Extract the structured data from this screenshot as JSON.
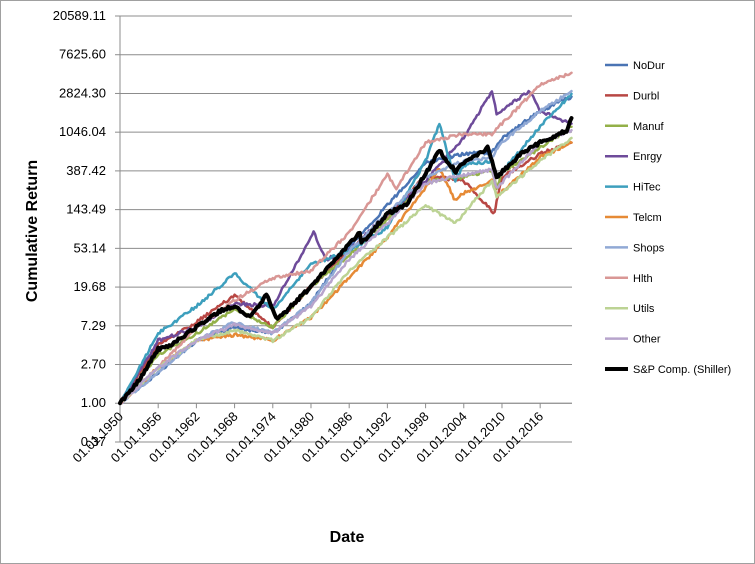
{
  "chart_data": {
    "type": "line",
    "title": "",
    "xlabel": "Date",
    "ylabel": "Cumulative Return",
    "y_scale": "log",
    "ylim": [
      0.37,
      20589.11
    ],
    "y_ticks": [
      "0.37",
      "1.00",
      "2.70",
      "7.29",
      "19.68",
      "53.14",
      "143.49",
      "387.42",
      "1046.04",
      "2824.30",
      "7625.60",
      "20589.11"
    ],
    "y_tick_values": [
      0.37,
      1.0,
      2.7,
      7.29,
      19.68,
      53.14,
      143.49,
      387.42,
      1046.04,
      2824.3,
      7625.6,
      20589.11
    ],
    "x_ticks": [
      "01.01.1950",
      "01.01.1956",
      "01.01.1962",
      "01.01.1968",
      "01.01.1974",
      "01.01.1980",
      "01.01.1986",
      "01.01.1992",
      "01.01.1998",
      "01.01.2004",
      "01.01.2010",
      "01.01.2016"
    ],
    "xlim": [
      "1950-01-01",
      "2020-12-31"
    ],
    "grid": "horizontal",
    "legend_position": "right",
    "series": [
      {
        "name": "NoDur",
        "color": "#4a74b4",
        "width": 2.5,
        "x": [
          "1950-01-01",
          "1956-01-01",
          "1962-01-01",
          "1968-01-01",
          "1974-01-01",
          "1980-01-01",
          "1986-01-01",
          "1992-01-01",
          "1998-01-01",
          "2004-01-01",
          "2008-06-01",
          "2010-01-01",
          "2016-01-01",
          "2020-12-01"
        ],
        "y": [
          1,
          2.2,
          5,
          7,
          6,
          13,
          55,
          160,
          480,
          600,
          620,
          900,
          1800,
          2600
        ]
      },
      {
        "name": "Durbl",
        "color": "#b84744",
        "width": 2.5,
        "x": [
          "1950-01-01",
          "1956-01-01",
          "1962-01-01",
          "1968-01-01",
          "1974-01-01",
          "1980-01-01",
          "1986-01-01",
          "1992-01-01",
          "1998-01-01",
          "2004-01-01",
          "2008-11-01",
          "2009-03-01",
          "2010-01-01",
          "2016-01-01",
          "2020-12-01"
        ],
        "y": [
          1,
          4.5,
          8,
          16,
          7,
          20,
          50,
          120,
          340,
          300,
          130,
          180,
          330,
          600,
          800
        ]
      },
      {
        "name": "Manuf",
        "color": "#93b048",
        "width": 2.5,
        "x": [
          "1950-01-01",
          "1956-01-01",
          "1962-01-01",
          "1968-01-01",
          "1974-01-01",
          "1980-01-01",
          "1986-01-01",
          "1992-01-01",
          "1998-01-01",
          "2004-01-01",
          "2008-06-01",
          "2009-03-01",
          "2010-01-01",
          "2016-01-01",
          "2020-12-01"
        ],
        "y": [
          1,
          3.5,
          6,
          11,
          7,
          20,
          45,
          110,
          300,
          330,
          400,
          250,
          370,
          700,
          1200
        ]
      },
      {
        "name": "Enrgy",
        "color": "#6e4b9a",
        "width": 2.5,
        "x": [
          "1950-01-01",
          "1956-01-01",
          "1962-01-01",
          "1968-01-01",
          "1974-01-01",
          "1980-06-01",
          "1982-06-01",
          "1986-01-01",
          "1992-01-01",
          "1998-01-01",
          "2004-01-01",
          "2008-06-01",
          "2009-03-01",
          "2014-06-01",
          "2016-01-01",
          "2020-12-01"
        ],
        "y": [
          1,
          5,
          7,
          13,
          12,
          80,
          40,
          50,
          130,
          300,
          900,
          3000,
          1700,
          3000,
          1800,
          1300
        ]
      },
      {
        "name": "HiTec",
        "color": "#3d9fbd",
        "width": 2.5,
        "x": [
          "1950-01-01",
          "1956-01-01",
          "1962-01-01",
          "1968-01-01",
          "1974-01-01",
          "1980-01-01",
          "1986-01-01",
          "1992-01-01",
          "1998-01-01",
          "2000-03-01",
          "2002-09-01",
          "2004-01-01",
          "2008-06-01",
          "2009-03-01",
          "2016-01-01",
          "2020-12-01"
        ],
        "y": [
          1,
          6,
          12,
          28,
          11,
          35,
          50,
          90,
          500,
          1300,
          300,
          450,
          500,
          320,
          1200,
          2800
        ]
      },
      {
        "name": "Telcm",
        "color": "#e68a36",
        "width": 2.5,
        "x": [
          "1950-01-01",
          "1956-01-01",
          "1962-01-01",
          "1968-01-01",
          "1974-01-01",
          "1980-01-01",
          "1986-01-01",
          "1992-01-01",
          "1998-01-01",
          "2000-03-01",
          "2002-09-01",
          "2004-01-01",
          "2008-06-01",
          "2009-03-01",
          "2016-01-01",
          "2020-12-01"
        ],
        "y": [
          1,
          2.5,
          5,
          5.8,
          5,
          9,
          25,
          70,
          250,
          420,
          180,
          220,
          300,
          200,
          550,
          800
        ]
      },
      {
        "name": "Shops",
        "color": "#91a9d5",
        "width": 2.5,
        "x": [
          "1950-01-01",
          "1956-01-01",
          "1962-01-01",
          "1968-01-01",
          "1974-01-01",
          "1980-01-01",
          "1986-01-01",
          "1992-01-01",
          "1998-01-01",
          "2004-01-01",
          "2008-06-01",
          "2010-01-01",
          "2016-01-01",
          "2020-12-01"
        ],
        "y": [
          1,
          2.2,
          5,
          8,
          6,
          13,
          50,
          130,
          330,
          500,
          550,
          800,
          1800,
          3000
        ]
      },
      {
        "name": "Hlth",
        "color": "#d99795",
        "width": 2.5,
        "x": [
          "1950-01-01",
          "1956-01-01",
          "1962-01-01",
          "1968-01-01",
          "1974-01-01",
          "1980-01-01",
          "1986-01-01",
          "1992-01-01",
          "1993-06-01",
          "1998-01-01",
          "2004-01-01",
          "2008-06-01",
          "2010-01-01",
          "2016-01-01",
          "2020-12-01"
        ],
        "y": [
          1,
          2.5,
          7,
          14,
          25,
          30,
          80,
          350,
          250,
          800,
          1000,
          1000,
          1300,
          3500,
          4800
        ]
      },
      {
        "name": "Utils",
        "color": "#bcd394",
        "width": 2.5,
        "x": [
          "1950-01-01",
          "1956-01-01",
          "1962-01-01",
          "1968-01-01",
          "1974-01-01",
          "1980-01-01",
          "1986-01-01",
          "1992-01-01",
          "1998-01-01",
          "2002-09-01",
          "2004-01-01",
          "2008-06-01",
          "2009-03-01",
          "2016-01-01",
          "2020-12-01"
        ],
        "y": [
          1,
          2.5,
          5,
          6.5,
          5,
          9,
          30,
          70,
          160,
          100,
          130,
          300,
          200,
          500,
          900
        ]
      },
      {
        "name": "Other",
        "color": "#b7a4cc",
        "width": 2.5,
        "x": [
          "1950-01-01",
          "1956-01-01",
          "1962-01-01",
          "1968-01-01",
          "1974-01-01",
          "1980-01-01",
          "1986-01-01",
          "1992-01-01",
          "1998-01-01",
          "2004-01-01",
          "2008-06-01",
          "2009-03-01",
          "2016-01-01",
          "2020-12-01"
        ],
        "y": [
          1,
          2.5,
          5,
          7.5,
          6,
          12,
          40,
          100,
          280,
          350,
          400,
          250,
          800,
          1100
        ]
      },
      {
        "name": "S&P Comp. (Shiller)",
        "color": "#000000",
        "width": 4,
        "x": [
          "1950-01-01",
          "1953-01-01",
          "1956-01-01",
          "1958-01-01",
          "1962-01-01",
          "1966-01-01",
          "1968-01-01",
          "1970-06-01",
          "1973-01-01",
          "1974-10-01",
          "1980-01-01",
          "1987-09-01",
          "1987-12-01",
          "1992-01-01",
          "1995-01-01",
          "2000-03-01",
          "2002-10-01",
          "2004-01-01",
          "2007-10-01",
          "2009-03-01",
          "2013-01-01",
          "2016-01-01",
          "2020-03-01",
          "2020-12-01"
        ],
        "y": [
          1,
          1.8,
          4,
          4.5,
          7,
          11,
          12,
          9,
          16,
          8.5,
          20,
          80,
          60,
          130,
          160,
          650,
          380,
          480,
          700,
          330,
          600,
          800,
          1100,
          1500
        ]
      }
    ]
  }
}
